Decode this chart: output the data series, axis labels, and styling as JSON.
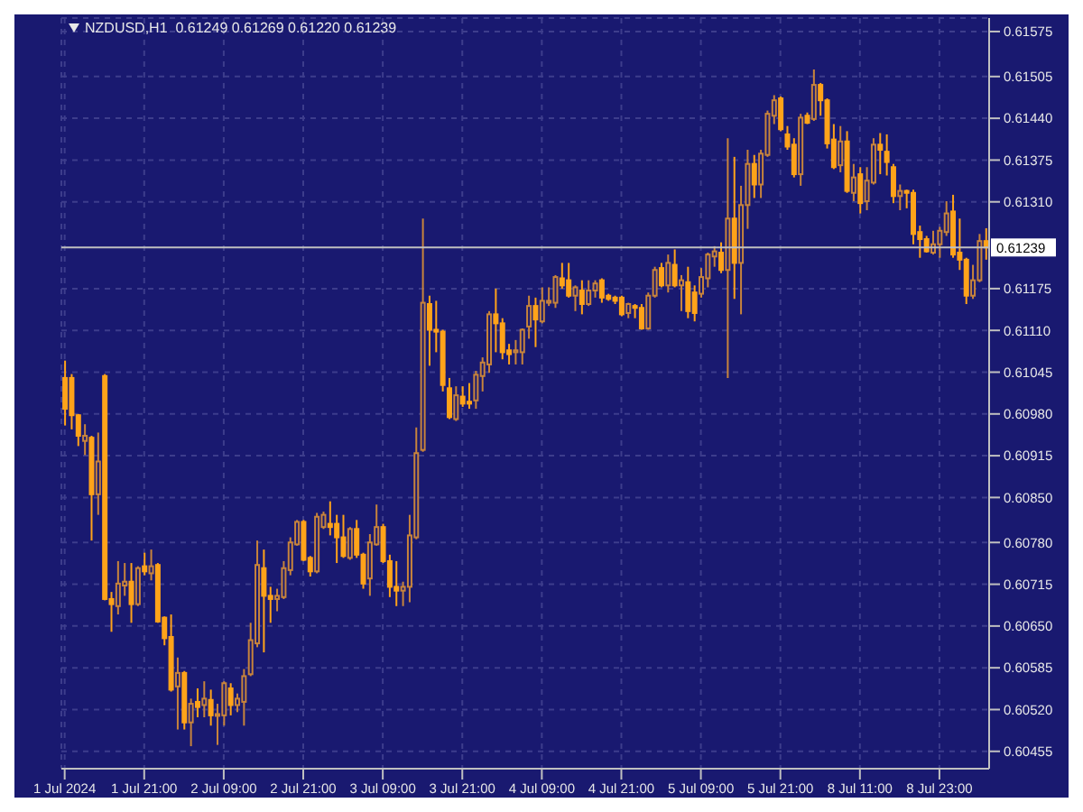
{
  "chart_data": {
    "type": "candlestick",
    "title": "NZDUSD,H1  0.61249 0.61269 0.61220 0.61239",
    "categories": [
      "1 Jul 2024",
      null,
      null,
      null,
      null,
      null,
      null,
      null,
      null,
      null,
      null,
      null,
      "1 Jul 21:00",
      null,
      null,
      null,
      null,
      null,
      null,
      null,
      null,
      null,
      null,
      null,
      "2 Jul 09:00",
      null,
      null,
      null,
      null,
      null,
      null,
      null,
      null,
      null,
      null,
      null,
      "2 Jul 21:00",
      null,
      null,
      null,
      null,
      null,
      null,
      null,
      null,
      null,
      null,
      null,
      "3 Jul 09:00",
      null,
      null,
      null,
      null,
      null,
      null,
      null,
      null,
      null,
      null,
      null,
      "3 Jul 21:00",
      null,
      null,
      null,
      null,
      null,
      null,
      null,
      null,
      null,
      null,
      null,
      "4 Jul 09:00",
      null,
      null,
      null,
      null,
      null,
      null,
      null,
      null,
      null,
      null,
      null,
      "4 Jul 21:00",
      null,
      null,
      null,
      null,
      null,
      null,
      null,
      null,
      null,
      null,
      null,
      "5 Jul 09:00",
      null,
      null,
      null,
      null,
      null,
      null,
      null,
      null,
      null,
      null,
      null,
      "5 Jul 21:00",
      null,
      null,
      null,
      null,
      null,
      null,
      null,
      null,
      null,
      null,
      null,
      "8 Jul 11:00",
      null,
      null,
      null,
      null,
      null,
      null,
      null,
      null,
      null,
      null,
      null,
      "8 Jul 23:00",
      null,
      null,
      null,
      null,
      null,
      null,
      null
    ],
    "ohlc": [
      [
        0.61036,
        0.61063,
        0.60962,
        0.60988
      ],
      [
        0.61036,
        0.61042,
        0.60956,
        0.60978
      ],
      [
        0.60978,
        0.6098,
        0.6093,
        0.60946
      ],
      [
        0.60938,
        0.60964,
        0.60916,
        0.60946
      ],
      [
        0.60943,
        0.60946,
        0.60783,
        0.60855
      ],
      [
        0.60855,
        0.60951,
        0.60823,
        0.60906
      ],
      [
        0.61039,
        0.61042,
        0.6069,
        0.60692
      ],
      [
        0.60692,
        0.60703,
        0.60641,
        0.60684
      ],
      [
        0.60681,
        0.60751,
        0.60668,
        0.60716
      ],
      [
        0.60713,
        0.60748,
        0.60697,
        0.60719
      ],
      [
        0.60719,
        0.60748,
        0.60655,
        0.60684
      ],
      [
        0.60684,
        0.60743,
        0.60681,
        0.6074
      ],
      [
        0.60743,
        0.60764,
        0.60729,
        0.60735
      ],
      [
        0.60732,
        0.60769,
        0.60721,
        0.60743
      ],
      [
        0.60745,
        0.60748,
        0.60655,
        0.60657
      ],
      [
        0.60663,
        0.60665,
        0.6062,
        0.60631
      ],
      [
        0.60633,
        0.60668,
        0.60548,
        0.60551
      ],
      [
        0.60556,
        0.60601,
        0.60489,
        0.60577
      ],
      [
        0.60577,
        0.6058,
        0.60489,
        0.605
      ],
      [
        0.605,
        0.60537,
        0.60463,
        0.60529
      ],
      [
        0.60532,
        0.60553,
        0.60508,
        0.60524
      ],
      [
        0.60527,
        0.60564,
        0.60508,
        0.60537
      ],
      [
        0.60535,
        0.60551,
        0.60495,
        0.60511
      ],
      [
        0.60511,
        0.60529,
        0.60465,
        0.60513
      ],
      [
        0.60511,
        0.60564,
        0.60495,
        0.60561
      ],
      [
        0.60553,
        0.60561,
        0.60511,
        0.60527
      ],
      [
        0.60527,
        0.60545,
        0.60516,
        0.60537
      ],
      [
        0.60532,
        0.60583,
        0.60495,
        0.60572
      ],
      [
        0.60575,
        0.60655,
        0.60572,
        0.60628
      ],
      [
        0.60623,
        0.60783,
        0.60617,
        0.60745
      ],
      [
        0.6074,
        0.60769,
        0.60609,
        0.60697
      ],
      [
        0.60697,
        0.60711,
        0.60655,
        0.60692
      ],
      [
        0.60692,
        0.60708,
        0.60673,
        0.60697
      ],
      [
        0.60695,
        0.60751,
        0.60692,
        0.6074
      ],
      [
        0.60737,
        0.60788,
        0.60729,
        0.6078
      ],
      [
        0.60777,
        0.60815,
        0.60775,
        0.60812
      ],
      [
        0.60812,
        0.60815,
        0.60751,
        0.60753
      ],
      [
        0.60756,
        0.60759,
        0.60727,
        0.60735
      ],
      [
        0.60735,
        0.60826,
        0.60732,
        0.6082
      ],
      [
        0.60804,
        0.60828,
        0.60801,
        0.60823
      ],
      [
        0.60809,
        0.60844,
        0.60791,
        0.60804
      ],
      [
        0.60809,
        0.60823,
        0.60748,
        0.60788
      ],
      [
        0.60788,
        0.60823,
        0.60756,
        0.60759
      ],
      [
        0.60756,
        0.60804,
        0.60753,
        0.60801
      ],
      [
        0.60801,
        0.60815,
        0.60756,
        0.60761
      ],
      [
        0.60761,
        0.60764,
        0.60708,
        0.60716
      ],
      [
        0.60724,
        0.60793,
        0.60697,
        0.6078
      ],
      [
        0.60777,
        0.60839,
        0.60775,
        0.60804
      ],
      [
        0.60804,
        0.60809,
        0.60748,
        0.60751
      ],
      [
        0.60751,
        0.60761,
        0.60695,
        0.60711
      ],
      [
        0.60711,
        0.60751,
        0.60681,
        0.60705
      ],
      [
        0.60705,
        0.60719,
        0.60681,
        0.60711
      ],
      [
        0.60711,
        0.60823,
        0.60687,
        0.60791
      ],
      [
        0.60788,
        0.60959,
        0.60785,
        0.60919
      ],
      [
        0.60924,
        0.61284,
        0.60921,
        0.61153
      ],
      [
        0.61151,
        0.61164,
        0.61055,
        0.61111
      ],
      [
        0.61111,
        0.61156,
        0.61076,
        0.61108
      ],
      [
        0.61108,
        0.61111,
        0.61015,
        0.61025
      ],
      [
        0.6102,
        0.61036,
        0.60972,
        0.60975
      ],
      [
        0.60972,
        0.61023,
        0.60969,
        0.61009
      ],
      [
        0.61007,
        0.61023,
        0.60991,
        0.60996
      ],
      [
        0.60999,
        0.61028,
        0.60988,
        0.60996
      ],
      [
        0.61001,
        0.61047,
        0.60988,
        0.61041
      ],
      [
        0.61039,
        0.61068,
        0.61015,
        0.6106
      ],
      [
        0.61057,
        0.6114,
        0.61044,
        0.61135
      ],
      [
        0.61135,
        0.61175,
        0.61076,
        0.61121
      ],
      [
        0.61121,
        0.61129,
        0.61065,
        0.61076
      ],
      [
        0.61079,
        0.61089,
        0.61057,
        0.61073
      ],
      [
        0.61076,
        0.61095,
        0.61057,
        0.61079
      ],
      [
        0.61076,
        0.61113,
        0.61057,
        0.61111
      ],
      [
        0.61116,
        0.61164,
        0.61097,
        0.61148
      ],
      [
        0.61148,
        0.61161,
        0.61084,
        0.61127
      ],
      [
        0.61124,
        0.61177,
        0.61121,
        0.61156
      ],
      [
        0.61153,
        0.61177,
        0.61148,
        0.61156
      ],
      [
        0.61153,
        0.61196,
        0.61145,
        0.61193
      ],
      [
        0.61191,
        0.61215,
        0.61175,
        0.6118
      ],
      [
        0.61188,
        0.61215,
        0.61161,
        0.61164
      ],
      [
        0.61164,
        0.6118,
        0.6114,
        0.61177
      ],
      [
        0.61172,
        0.61188,
        0.61135,
        0.61151
      ],
      [
        0.61151,
        0.61188,
        0.61148,
        0.61172
      ],
      [
        0.61172,
        0.61188,
        0.61161,
        0.61183
      ],
      [
        0.61188,
        0.61191,
        0.61153,
        0.61161
      ],
      [
        0.61164,
        0.61167,
        0.61156,
        0.61159
      ],
      [
        0.61161,
        0.61164,
        0.61151,
        0.61156
      ],
      [
        0.61161,
        0.61164,
        0.61132,
        0.61135
      ],
      [
        0.61137,
        0.61153,
        0.61129,
        0.61151
      ],
      [
        0.61148,
        0.61151,
        0.61129,
        0.61145
      ],
      [
        0.61145,
        0.61151,
        0.61111,
        0.61113
      ],
      [
        0.61113,
        0.61169,
        0.61111,
        0.61164
      ],
      [
        0.61164,
        0.61209,
        0.61161,
        0.61204
      ],
      [
        0.61207,
        0.61215,
        0.61177,
        0.6118
      ],
      [
        0.6118,
        0.61228,
        0.61169,
        0.61215
      ],
      [
        0.61212,
        0.61236,
        0.61177,
        0.6118
      ],
      [
        0.6118,
        0.61196,
        0.6114,
        0.61188
      ],
      [
        0.61185,
        0.61209,
        0.61129,
        0.6114
      ],
      [
        0.61169,
        0.6118,
        0.61124,
        0.61137
      ],
      [
        0.61167,
        0.61207,
        0.61161,
        0.61193
      ],
      [
        0.61191,
        0.61231,
        0.61177,
        0.61228
      ],
      [
        0.61225,
        0.61241,
        0.61209,
        0.61233
      ],
      [
        0.61231,
        0.61247,
        0.61199,
        0.61204
      ],
      [
        0.61204,
        0.61409,
        0.61036,
        0.61284
      ],
      [
        0.61284,
        0.6138,
        0.61159,
        0.61215
      ],
      [
        0.61215,
        0.61335,
        0.61135,
        0.61305
      ],
      [
        0.61305,
        0.61391,
        0.61268,
        0.61369
      ],
      [
        0.61369,
        0.61383,
        0.61316,
        0.61337
      ],
      [
        0.61337,
        0.61391,
        0.61316,
        0.61385
      ],
      [
        0.61383,
        0.61452,
        0.6138,
        0.61447
      ],
      [
        0.61444,
        0.61476,
        0.61431,
        0.61468
      ],
      [
        0.61471,
        0.61474,
        0.6142,
        0.61423
      ],
      [
        0.61415,
        0.61428,
        0.61391,
        0.61396
      ],
      [
        0.61399,
        0.61409,
        0.61348,
        0.61353
      ],
      [
        0.61353,
        0.61447,
        0.61335,
        0.61441
      ],
      [
        0.61444,
        0.61449,
        0.61431,
        0.61433
      ],
      [
        0.61439,
        0.61516,
        0.61436,
        0.61492
      ],
      [
        0.61492,
        0.61495,
        0.61444,
        0.61468
      ],
      [
        0.61468,
        0.61471,
        0.61393,
        0.61401
      ],
      [
        0.61407,
        0.61431,
        0.61361,
        0.61364
      ],
      [
        0.61367,
        0.61428,
        0.61356,
        0.61404
      ],
      [
        0.61404,
        0.6142,
        0.61324,
        0.61327
      ],
      [
        0.61324,
        0.61369,
        0.61311,
        0.61348
      ],
      [
        0.61353,
        0.61364,
        0.61292,
        0.61308
      ],
      [
        0.61311,
        0.61364,
        0.61297,
        0.61343
      ],
      [
        0.6134,
        0.61409,
        0.61337,
        0.61399
      ],
      [
        0.61399,
        0.61417,
        0.61353,
        0.61391
      ],
      [
        0.61388,
        0.61415,
        0.61351,
        0.61372
      ],
      [
        0.61364,
        0.61369,
        0.61308,
        0.61319
      ],
      [
        0.61319,
        0.61337,
        0.61297,
        0.61327
      ],
      [
        0.61327,
        0.61329,
        0.613,
        0.61324
      ],
      [
        0.61324,
        0.61329,
        0.61244,
        0.6126
      ],
      [
        0.61263,
        0.61273,
        0.61223,
        0.61252
      ],
      [
        0.61252,
        0.61257,
        0.61231,
        0.61233
      ],
      [
        0.61231,
        0.61265,
        0.61228,
        0.61244
      ],
      [
        0.61244,
        0.61271,
        0.61223,
        0.61265
      ],
      [
        0.61263,
        0.61311,
        0.61257,
        0.61292
      ],
      [
        0.61295,
        0.61321,
        0.61223,
        0.61228
      ],
      [
        0.61231,
        0.61284,
        0.61204,
        0.6122
      ],
      [
        0.6122,
        0.61223,
        0.61151,
        0.61164
      ],
      [
        0.61164,
        0.61212,
        0.61159,
        0.61188
      ],
      [
        0.61188,
        0.6126,
        0.61185,
        0.61249
      ],
      [
        0.61249,
        0.61269,
        0.6122,
        0.61239
      ]
    ],
    "colors": [
      "#ffa31a",
      "#ffa31a",
      "#ffa31a",
      "#c8843c",
      "#ffa31a",
      "#c8843c",
      "#ffa31a",
      "#ffa31a",
      "#c8843c",
      "#c8843c",
      "#ffa31a",
      "#c8843c",
      "#ffa31a",
      "#c8843c",
      "#ffa31a",
      "#ffa31a",
      "#ffa31a",
      "#c8843c",
      "#ffa31a",
      "#c8843c",
      "#ffa31a",
      "#c8843c",
      "#ffa31a",
      "#c8843c",
      "#c8843c",
      "#ffa31a",
      "#c8843c",
      "#c8843c",
      "#c8843c",
      "#c8843c",
      "#ffa31a",
      "#ffa31a",
      "#c8843c",
      "#c8843c",
      "#c8843c",
      "#c8843c",
      "#ffa31a",
      "#ffa31a",
      "#c8843c",
      "#c8843c",
      "#ffa31a",
      "#ffa31a",
      "#ffa31a",
      "#c8843c",
      "#ffa31a",
      "#ffa31a",
      "#c8843c",
      "#c8843c",
      "#ffa31a",
      "#ffa31a",
      "#ffa31a",
      "#c8843c",
      "#c8843c",
      "#c8843c",
      "#c8843c",
      "#ffa31a",
      "#ffa31a",
      "#ffa31a",
      "#ffa31a",
      "#c8843c",
      "#ffa31a",
      "#ffa31a",
      "#c8843c",
      "#c8843c",
      "#c8843c",
      "#ffa31a",
      "#ffa31a",
      "#ffa31a",
      "#c8843c",
      "#c8843c",
      "#c8843c",
      "#ffa31a",
      "#c8843c",
      "#c8843c",
      "#c8843c",
      "#ffa31a",
      "#ffa31a",
      "#c8843c",
      "#ffa31a",
      "#c8843c",
      "#c8843c",
      "#ffa31a",
      "#ffa31a",
      "#ffa31a",
      "#ffa31a",
      "#c8843c",
      "#ffa31a",
      "#ffa31a",
      "#c8843c",
      "#c8843c",
      "#ffa31a",
      "#c8843c",
      "#ffa31a",
      "#c8843c",
      "#ffa31a",
      "#ffa31a",
      "#c8843c",
      "#c8843c",
      "#c8843c",
      "#ffa31a",
      "#c8843c",
      "#ffa31a",
      "#c8843c",
      "#c8843c",
      "#ffa31a",
      "#c8843c",
      "#c8843c",
      "#c8843c",
      "#ffa31a",
      "#ffa31a",
      "#ffa31a",
      "#c8843c",
      "#ffa31a",
      "#c8843c",
      "#ffa31a",
      "#ffa31a",
      "#ffa31a",
      "#c8843c",
      "#ffa31a",
      "#c8843c",
      "#ffa31a",
      "#c8843c",
      "#c8843c",
      "#ffa31a",
      "#ffa31a",
      "#ffa31a",
      "#c8843c",
      "#ffa31a",
      "#ffa31a",
      "#ffa31a",
      "#ffa31a",
      "#c8843c",
      "#c8843c",
      "#c8843c",
      "#ffa31a",
      "#ffa31a",
      "#ffa31a",
      "#c8843c",
      "#c8843c",
      "#ffa31a"
    ],
    "ylim": [
      0.60428,
      0.61596
    ],
    "yticks": [
      0.61575,
      0.61505,
      {
        "value": 0.6144,
        "label": "0.61440"
      },
      0.61375,
      {
        "value": 0.6131,
        "label": "0.61310"
      },
      0.61175,
      {
        "value": 0.6111,
        "label": "0.61110"
      },
      0.61045,
      {
        "value": 0.6098,
        "label": "0.60980"
      },
      0.60915,
      {
        "value": 0.6085,
        "label": "0.60850"
      },
      {
        "value": 0.6078,
        "label": "0.60780"
      },
      0.60715,
      {
        "value": 0.6065,
        "label": "0.60650"
      },
      0.60585,
      {
        "value": 0.6052,
        "label": "0.60520"
      },
      0.60455
    ],
    "grid": true,
    "ref_lines": [
      {
        "axis": "y",
        "value": 0.61239,
        "label": "0.61239",
        "color": "#c0c0c0"
      }
    ]
  }
}
